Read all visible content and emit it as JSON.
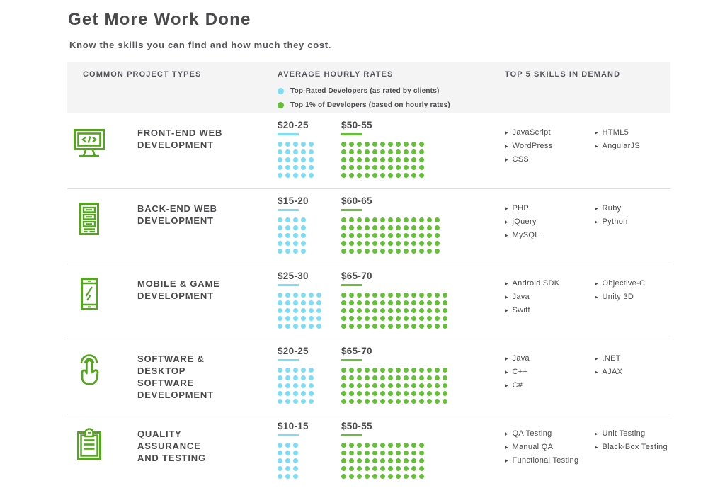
{
  "page": {
    "title": "Get More Work Done",
    "subtitle": "Know the skills you can find and how much they cost."
  },
  "header": {
    "project_types_label": "COMMON PROJECT TYPES",
    "rates_label": "AVERAGE HOURLY RATES",
    "skills_label": "TOP 5 SKILLS IN DEMAND",
    "legend": [
      {
        "color_key": "cyan",
        "label": "Top-Rated Developers (as rated by clients)"
      },
      {
        "color_key": "green",
        "label": "Top 1% of Developers (based on hourly rates)"
      }
    ]
  },
  "colors": {
    "cyan": "#7eddf4",
    "green": "#65bf38",
    "icon_green": "#54a51f"
  },
  "bullet_glyph": "▸",
  "rows": [
    {
      "icon": "monitor-code-icon",
      "title": "FRONT-END WEB\nDEVELOPMENT",
      "rates": [
        {
          "label": "$20-25",
          "color_key": "cyan",
          "dots": 25
        },
        {
          "label": "$50-55",
          "color_key": "green",
          "dots": 55
        }
      ],
      "skills_columns": [
        [
          "JavaScript",
          "WordPress",
          "CSS"
        ],
        [
          "HTML5",
          "AngularJS"
        ]
      ]
    },
    {
      "icon": "server-icon",
      "title": "BACK-END WEB\nDEVELOPMENT",
      "rates": [
        {
          "label": "$15-20",
          "color_key": "cyan",
          "dots": 20
        },
        {
          "label": "$60-65",
          "color_key": "green",
          "dots": 65
        }
      ],
      "skills_columns": [
        [
          "PHP",
          "jQuery",
          "MySQL"
        ],
        [
          "Ruby",
          "Python"
        ]
      ]
    },
    {
      "icon": "mobile-phone-icon",
      "title": "MOBILE & GAME\nDEVELOPMENT",
      "rates": [
        {
          "label": "$25-30",
          "color_key": "cyan",
          "dots": 30
        },
        {
          "label": "$65-70",
          "color_key": "green",
          "dots": 70
        }
      ],
      "skills_columns": [
        [
          "Android SDK",
          "Java",
          "Swift"
        ],
        [
          "Objective-C",
          "Unity 3D"
        ]
      ]
    },
    {
      "icon": "touch-hand-icon",
      "title": "SOFTWARE &\nDESKTOP\nSOFTWARE\nDEVELOPMENT",
      "rates": [
        {
          "label": "$20-25",
          "color_key": "cyan",
          "dots": 25
        },
        {
          "label": "$65-70",
          "color_key": "green",
          "dots": 70
        }
      ],
      "skills_columns": [
        [
          "Java",
          "C++",
          "C#"
        ],
        [
          ".NET",
          "AJAX"
        ]
      ]
    },
    {
      "icon": "clipboard-icon",
      "title": "QUALITY\nASSURANCE\nAND TESTING",
      "rates": [
        {
          "label": "$10-15",
          "color_key": "cyan",
          "dots": 15
        },
        {
          "label": "$50-55",
          "color_key": "green",
          "dots": 55
        }
      ],
      "skills_columns": [
        [
          "QA Testing",
          "Manual QA",
          "Functional Testing"
        ],
        [
          "Unit Testing",
          "Black-Box Testing"
        ]
      ]
    }
  ],
  "chart_data": {
    "type": "table",
    "title": "Get More Work Done",
    "subtitle": "Know the skills you can find and how much they cost.",
    "columns": [
      "Common Project Types",
      "Average Hourly Rates",
      "Top 5 Skills in Demand"
    ],
    "series_legend": [
      "Top-Rated Developers (as rated by clients)",
      "Top 1% of Developers (based on hourly rates)"
    ],
    "unit": "USD per hour, 1 dot = $1, grids 5 dots tall",
    "rows": [
      {
        "project_type": "Front-End Web Development",
        "top_rated_rate_usd": [
          20,
          25
        ],
        "top_rated_dot_count": 25,
        "top_1pct_rate_usd": [
          50,
          55
        ],
        "top_1pct_dot_count": 55,
        "skills": [
          "JavaScript",
          "WordPress",
          "CSS",
          "HTML5",
          "AngularJS"
        ]
      },
      {
        "project_type": "Back-End Web Development",
        "top_rated_rate_usd": [
          15,
          20
        ],
        "top_rated_dot_count": 20,
        "top_1pct_rate_usd": [
          60,
          65
        ],
        "top_1pct_dot_count": 65,
        "skills": [
          "PHP",
          "jQuery",
          "MySQL",
          "Ruby",
          "Python"
        ]
      },
      {
        "project_type": "Mobile & Game Development",
        "top_rated_rate_usd": [
          25,
          30
        ],
        "top_rated_dot_count": 30,
        "top_1pct_rate_usd": [
          65,
          70
        ],
        "top_1pct_dot_count": 70,
        "skills": [
          "Android SDK",
          "Java",
          "Swift",
          "Objective-C",
          "Unity 3D"
        ]
      },
      {
        "project_type": "Software & Desktop Software Development",
        "top_rated_rate_usd": [
          20,
          25
        ],
        "top_rated_dot_count": 25,
        "top_1pct_rate_usd": [
          65,
          70
        ],
        "top_1pct_dot_count": 70,
        "skills": [
          "Java",
          "C++",
          "C#",
          ".NET",
          "AJAX"
        ]
      },
      {
        "project_type": "Quality Assurance and Testing",
        "top_rated_rate_usd": [
          10,
          15
        ],
        "top_rated_dot_count": 15,
        "top_1pct_rate_usd": [
          50,
          55
        ],
        "top_1pct_dot_count": 55,
        "skills": [
          "QA Testing",
          "Manual QA",
          "Functional Testing",
          "Unit Testing",
          "Black-Box Testing"
        ]
      }
    ]
  }
}
